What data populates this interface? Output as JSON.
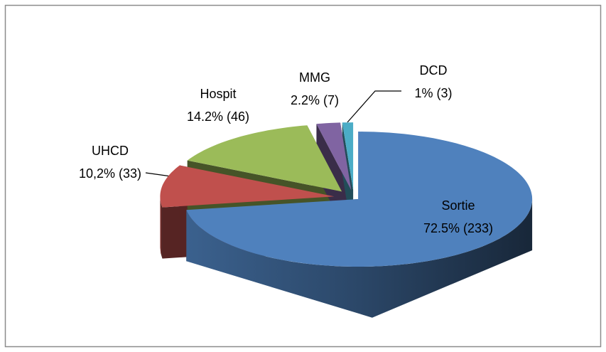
{
  "chart_data": {
    "type": "pie3d",
    "categories": [
      "Sortie",
      "UHCD",
      "Hospit",
      "MMG",
      "DCD"
    ],
    "values": [
      72.5,
      10.2,
      14.2,
      2.2,
      1
    ],
    "counts": [
      233,
      33,
      46,
      7,
      3
    ],
    "value_labels": [
      "72.5% (233)",
      "10,2% (33)",
      "14.2% (46)",
      "2.2% (7)",
      "1% (3)"
    ],
    "colors": [
      "#4f81bd",
      "#c0504d",
      "#9bbb59",
      "#8064a2",
      "#4bacc6"
    ]
  }
}
